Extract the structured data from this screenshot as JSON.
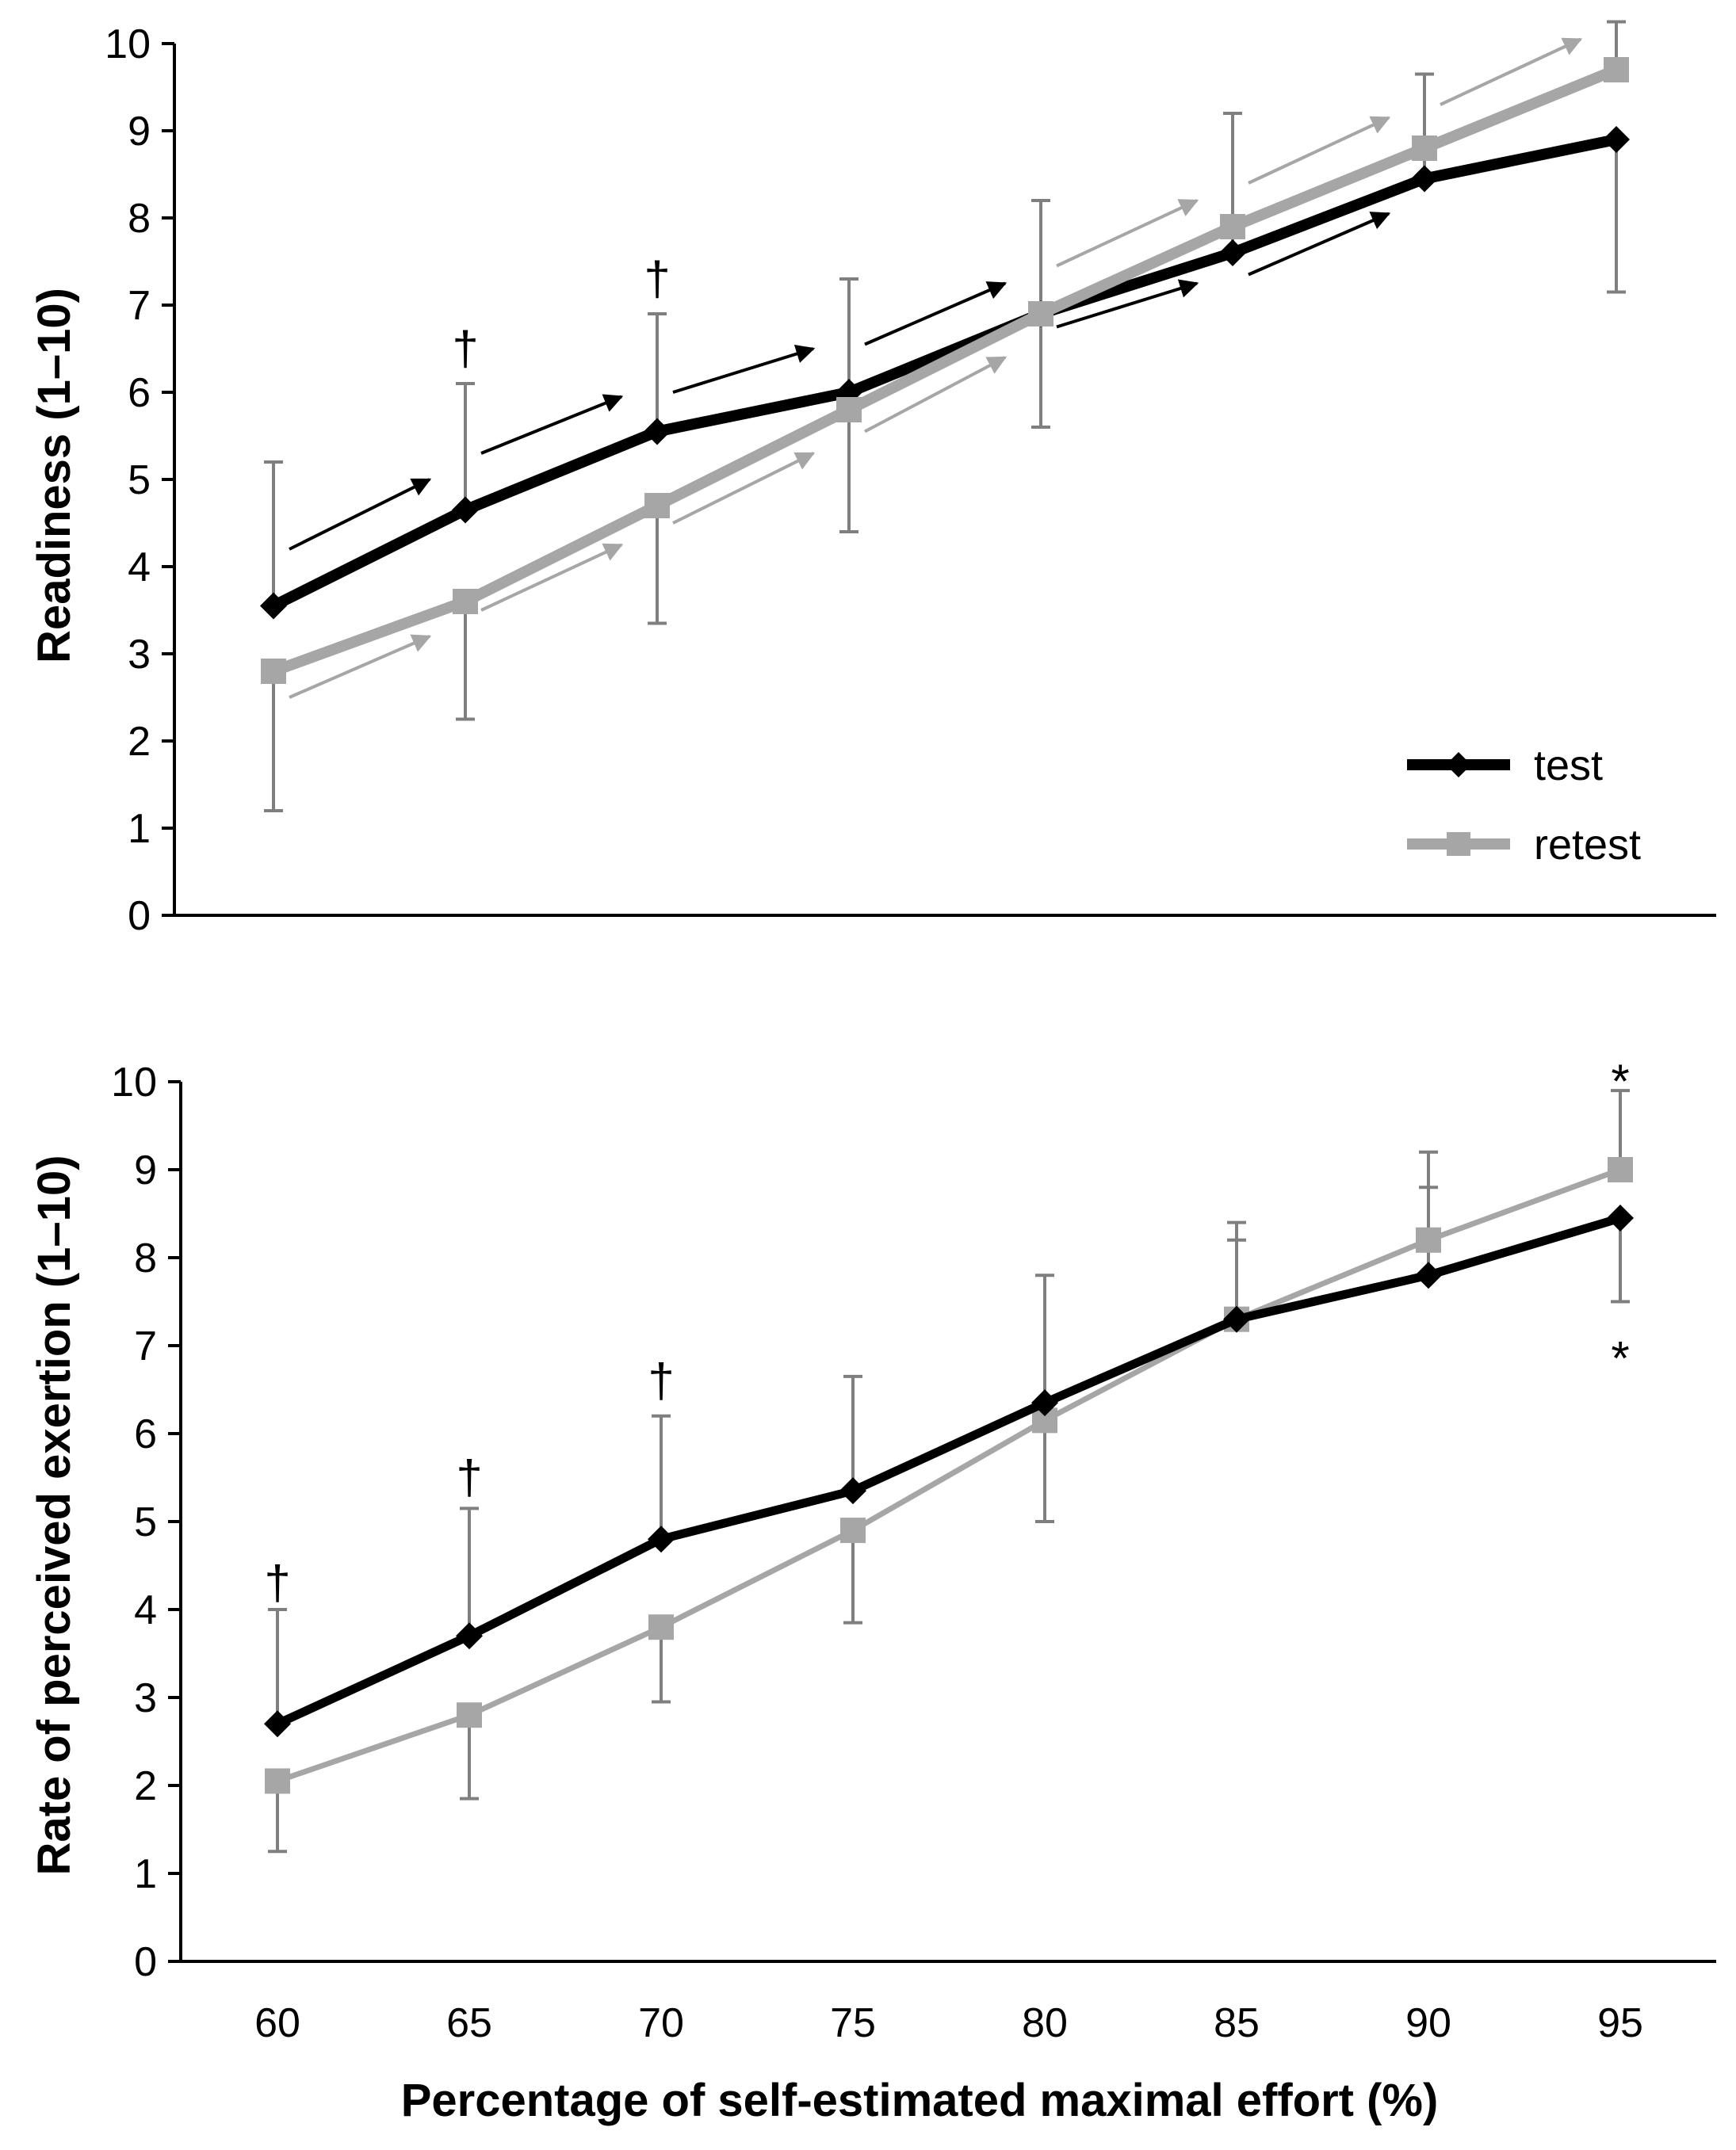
{
  "chart_data": [
    {
      "type": "line",
      "title": "",
      "ylabel": "Readiness (1–10)",
      "xlabel": "",
      "ylim": [
        0,
        10
      ],
      "yticks": [
        "0",
        "1",
        "2",
        "3",
        "4",
        "5",
        "6",
        "7",
        "8",
        "9",
        "10"
      ],
      "x": [
        60,
        65,
        70,
        75,
        80,
        85,
        90,
        95
      ],
      "xtick_labels": [],
      "legend_position": "bottom-right",
      "series": [
        {
          "name": "test",
          "color": "#000000",
          "marker": "diamond",
          "values": [
            3.55,
            4.65,
            5.55,
            6.0,
            6.9,
            7.6,
            8.45,
            8.9
          ],
          "sd": [
            1.65,
            1.45,
            1.35,
            1.3,
            1.3,
            1.6,
            1.2,
            1.75
          ]
        },
        {
          "name": "retest",
          "color": "#a6a6a6",
          "marker": "square",
          "values": [
            2.8,
            3.6,
            4.7,
            5.8,
            6.9,
            7.9,
            8.8,
            9.7
          ],
          "sd": [
            1.6,
            1.35,
            1.35,
            1.4,
            1.3,
            1.3,
            0.85,
            0.55
          ]
        }
      ],
      "annotations": [
        {
          "symbol": "†",
          "x": 65,
          "y": 6.5
        },
        {
          "symbol": "†",
          "x": 70,
          "y": 7.3
        }
      ],
      "arrows": [
        {
          "series": "test",
          "x0": 60,
          "y0": 4.2,
          "x1": 65,
          "y1": 5.0
        },
        {
          "series": "test",
          "x0": 65,
          "y0": 5.3,
          "x1": 70,
          "y1": 5.95
        },
        {
          "series": "test",
          "x0": 70,
          "y0": 6.0,
          "x1": 75,
          "y1": 6.5
        },
        {
          "series": "test",
          "x0": 75,
          "y0": 6.55,
          "x1": 80,
          "y1": 7.25
        },
        {
          "series": "test",
          "x0": 80,
          "y0": 6.75,
          "x1": 85,
          "y1": 7.25
        },
        {
          "series": "test",
          "x0": 85,
          "y0": 7.35,
          "x1": 90,
          "y1": 8.05
        },
        {
          "series": "retest",
          "x0": 60,
          "y0": 2.5,
          "x1": 65,
          "y1": 3.2
        },
        {
          "series": "retest",
          "x0": 65,
          "y0": 3.5,
          "x1": 70,
          "y1": 4.25
        },
        {
          "series": "retest",
          "x0": 70,
          "y0": 4.5,
          "x1": 75,
          "y1": 5.3
        },
        {
          "series": "retest",
          "x0": 75,
          "y0": 5.55,
          "x1": 80,
          "y1": 6.4
        },
        {
          "series": "retest",
          "x0": 80,
          "y0": 7.45,
          "x1": 85,
          "y1": 8.2
        },
        {
          "series": "retest",
          "x0": 85,
          "y0": 8.4,
          "x1": 90,
          "y1": 9.15
        },
        {
          "series": "retest",
          "x0": 90,
          "y0": 9.3,
          "x1": 95,
          "y1": 10.05
        }
      ]
    },
    {
      "type": "line",
      "title": "",
      "ylabel": "Rate of perceived exertion (1–10)",
      "xlabel": "Percentage of self-estimated maximal effort (%)",
      "ylim": [
        0,
        10
      ],
      "yticks": [
        "0",
        "1",
        "2",
        "3",
        "4",
        "5",
        "6",
        "7",
        "8",
        "9",
        "10"
      ],
      "x": [
        60,
        65,
        70,
        75,
        80,
        85,
        90,
        95
      ],
      "xtick_labels": [
        "60",
        "65",
        "70",
        "75",
        "80",
        "85",
        "90",
        "95"
      ],
      "series": [
        {
          "name": "test",
          "color": "#000000",
          "marker": "diamond",
          "values": [
            2.7,
            3.7,
            4.8,
            5.35,
            6.35,
            7.3,
            7.8,
            8.45
          ],
          "sd": [
            1.3,
            1.45,
            1.4,
            1.3,
            1.45,
            1.1,
            1.0,
            0.95
          ]
        },
        {
          "name": "retest",
          "color": "#a6a6a6",
          "marker": "square",
          "values": [
            2.05,
            2.8,
            3.8,
            4.9,
            6.15,
            7.3,
            8.2,
            9.0
          ],
          "sd": [
            0.8,
            0.95,
            0.85,
            1.05,
            1.15,
            0.9,
            1.0,
            0.9
          ]
        }
      ],
      "annotations": [
        {
          "symbol": "†",
          "x": 60,
          "y": 4.3
        },
        {
          "symbol": "†",
          "x": 65,
          "y": 5.5
        },
        {
          "symbol": "†",
          "x": 70,
          "y": 6.6
        },
        {
          "symbol": "*",
          "x": 95,
          "y": 10.0
        },
        {
          "symbol": "*",
          "x": 95,
          "y": 6.85
        }
      ]
    }
  ]
}
